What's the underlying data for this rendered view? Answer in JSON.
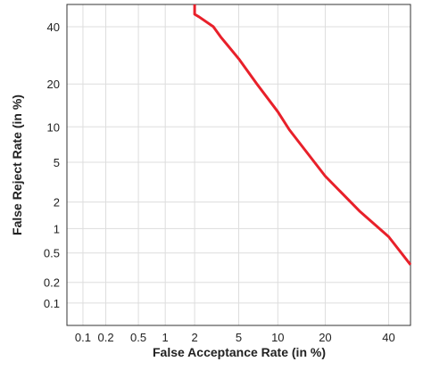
{
  "chart_data": {
    "type": "line",
    "scale": "probit",
    "grid": true,
    "x_label": "False Acceptance Rate (in %)",
    "y_label": "False Reject Rate (in %)",
    "xlim": [
      0.06,
      48
    ],
    "ylim": [
      0.045,
      49
    ],
    "xticks": [
      0.1,
      0.2,
      0.5,
      1,
      2,
      5,
      10,
      20,
      40
    ],
    "yticks": [
      0.1,
      0.2,
      0.5,
      1,
      2,
      5,
      10,
      20,
      40
    ],
    "series": [
      {
        "color": "#e8202a",
        "x": [
          2,
          2,
          2.2,
          3,
          3.5,
          5,
          7,
          10,
          12,
          20,
          30,
          40,
          48
        ],
        "values": [
          49,
          45,
          44,
          40,
          36,
          28,
          20,
          13,
          9.5,
          3.7,
          1.6,
          0.8,
          0.35
        ]
      }
    ]
  }
}
